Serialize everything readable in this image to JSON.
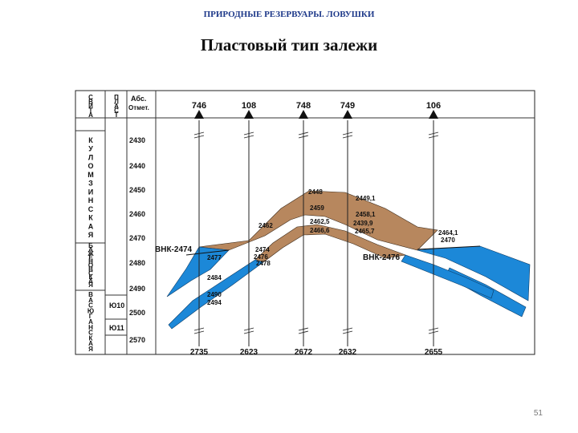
{
  "header": "ПРИРОДНЫЕ РЕЗЕРВУАРЫ. ЛОВУШКИ",
  "title": "Пластовый тип залежи",
  "page_number": "51",
  "columns": {
    "svita": "СВИТА",
    "plast": "ПЛАСТ",
    "abs_line1": "Абс.",
    "abs_line2": "Отмет."
  },
  "formations": [
    {
      "name": "КУЛОМЗИНСКАЯ"
    },
    {
      "name": "БАЖЕНОВСКАЯ"
    },
    {
      "name": "ВАСЮГАНСКАЯ"
    }
  ],
  "plasts": [
    "Ю10",
    "Ю11"
  ],
  "depth_scale": [
    "2430",
    "2440",
    "2450",
    "2460",
    "2470",
    "2480",
    "2490",
    "2500",
    "2570"
  ],
  "wells": [
    {
      "top": "746",
      "bottom": "2735"
    },
    {
      "top": "108",
      "bottom": "2623"
    },
    {
      "top": "748",
      "bottom": "2672"
    },
    {
      "top": "749",
      "bottom": "2632"
    },
    {
      "top": "106",
      "bottom": "2655"
    }
  ],
  "contacts": [
    "ВНК-2474",
    "ВНК-2476"
  ],
  "well_labels": [
    [
      "2477",
      "2484",
      "2490",
      "2494"
    ],
    [
      "2462",
      "2474",
      "2476",
      "2478"
    ],
    [
      "2448",
      "2459",
      "2462,5",
      "2466,6"
    ],
    [
      "2449,1",
      "2458,1",
      "2439,9",
      "2465,7"
    ],
    [
      "2464,1",
      "2470"
    ]
  ],
  "colors": {
    "oil": "#b7875e",
    "water": "#1c88d8",
    "header": "#1f3a8a"
  }
}
